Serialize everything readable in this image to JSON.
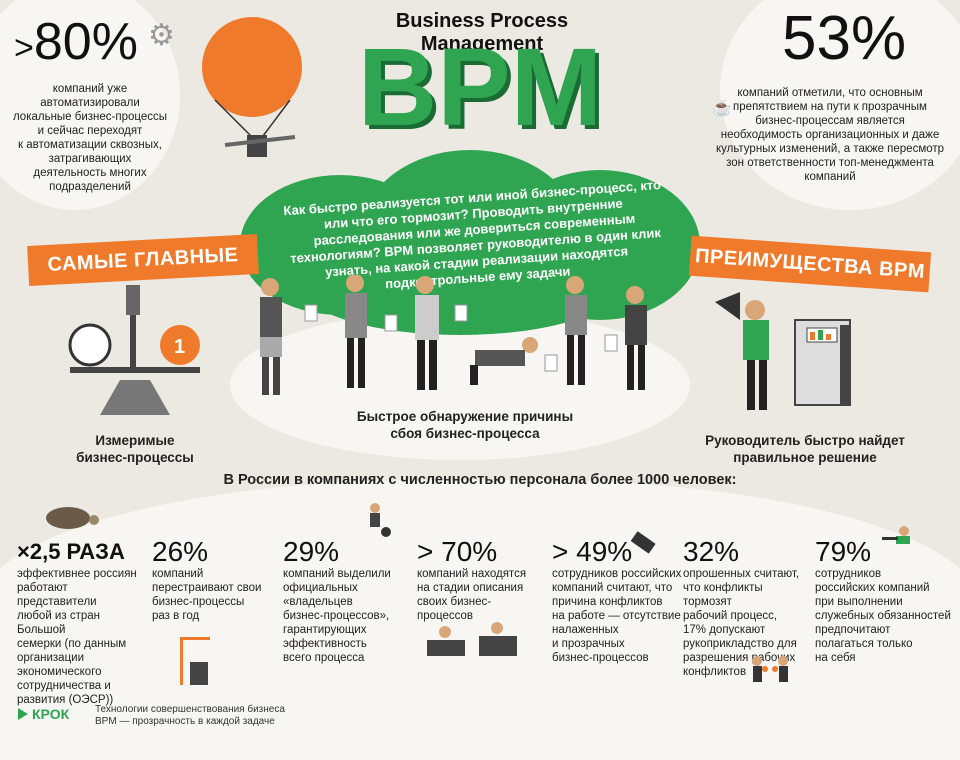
{
  "header": {
    "subtitle": "Business Process Management",
    "title": "BPM"
  },
  "left_stat": {
    "prefix": ">",
    "value": "80%",
    "text_lines": [
      "компаний уже",
      "автоматизировали",
      "локальные бизнес-процессы",
      "и сейчас переходят",
      "к автоматизации сквозных,",
      "затрагивающих",
      "деятельность многих",
      "подразделений"
    ]
  },
  "right_stat": {
    "value": "53%",
    "text_lines": [
      "компаний отметили, что основным",
      "препятствием на пути к прозрачным",
      "бизнес-процессам является",
      "необходимость организационных и даже",
      "культурных изменений, а также пересмотр",
      "зон ответственности топ-менеджмента",
      "компаний"
    ]
  },
  "tree_text": "Как быстро реализуется тот или иной бизнес-процесс, кто или что его тормозит? Проводить внутренние расследования или же довериться современным технологиям? BPM позволяет руководителю в один клик узнать, на какой стадии реализации находятся подконтрольные ему задачи",
  "ribbons": {
    "left": "САМЫЕ ГЛАВНЫЕ",
    "right": "ПРЕИМУЩЕСТВА BPM"
  },
  "captions": {
    "left": [
      "Измеримые",
      "бизнес-процессы"
    ],
    "center": [
      "Быстрое обнаружение причины",
      "сбоя бизнес-процесса"
    ],
    "right": [
      "Руководитель быстро найдет",
      "правильное решение"
    ]
  },
  "section_title": "В России в компаниях с численностью персонала более 1000 человек:",
  "stats": [
    {
      "num": "×2,5 РАЗА",
      "text": [
        "эффективнее россиян",
        "работают представители",
        "любой из стран Большой",
        "семерки (по данным",
        "организации",
        "экономического",
        "сотрудничества и",
        "развития (ОЭСР))"
      ]
    },
    {
      "num": "26%",
      "text": [
        "компаний",
        "перестраивают свои",
        "бизнес-процессы",
        "раз в год"
      ]
    },
    {
      "num": "29%",
      "text": [
        "компаний выделили",
        "официальных",
        "«владельцев",
        "бизнес-процессов»,",
        "гарантирующих",
        "эффективность",
        "всего процесса"
      ]
    },
    {
      "num": "> 70%",
      "text": [
        "компаний находятся",
        "на стадии описания",
        "своих бизнес-процессов"
      ]
    },
    {
      "num": "> 49%",
      "text": [
        "сотрудников российских",
        "компаний считают, что",
        "причина конфликтов",
        "на работе — отсутствие",
        "налаженных",
        "и прозрачных",
        "бизнес-процессов"
      ]
    },
    {
      "num": "32%",
      "text": [
        "опрошенных считают,",
        "что конфликты тормозят",
        "рабочий процесс,",
        "17% допускают",
        "рукоприкладство для",
        "разрешения рабочих",
        "конфликтов"
      ]
    },
    {
      "num": "79%",
      "text": [
        "сотрудников",
        "российских компаний",
        "при выполнении",
        "служебных обязанностей",
        "предпочитают",
        "полагаться только",
        "на себя"
      ]
    }
  ],
  "footer": {
    "logo": "КРОК",
    "line1": "Технологии совершенствования бизнеса",
    "line2": "BPM — прозрачность в каждой задаче"
  },
  "colors": {
    "green": "#2fa551",
    "orange": "#f07a2c",
    "background": "#ece9e3"
  }
}
